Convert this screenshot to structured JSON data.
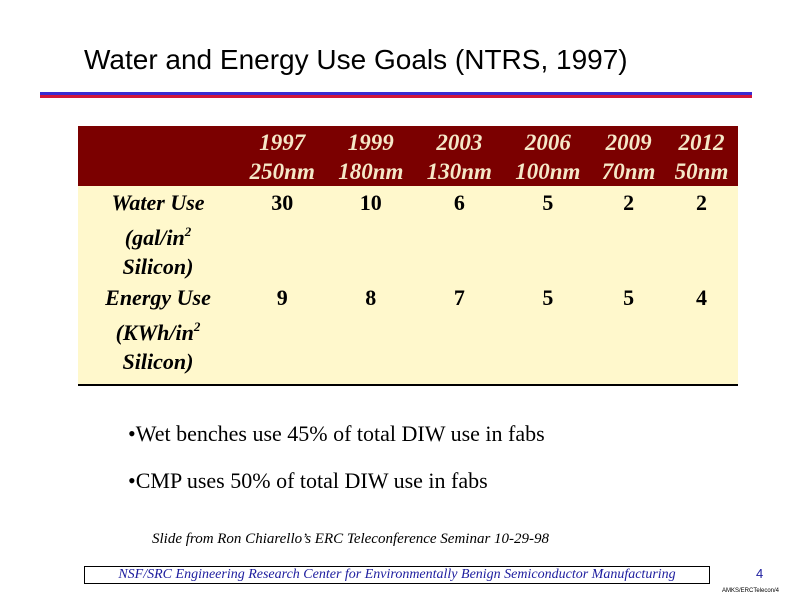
{
  "slide": {
    "title": "Water and Energy Use Goals (NTRS, 1997)",
    "table": {
      "columns": [
        {
          "year": "1997",
          "node": "250nm"
        },
        {
          "year": "1999",
          "node": "180nm"
        },
        {
          "year": "2003",
          "node": "130nm"
        },
        {
          "year": "2006",
          "node": "100nm"
        },
        {
          "year": "2009",
          "node": "70nm"
        },
        {
          "year": "2012",
          "node": "50nm"
        }
      ],
      "rows": [
        {
          "label_main": "Water Use",
          "label_unit_pre": "(gal/in",
          "label_unit_exp": "2",
          "label_tail": "Silicon)",
          "values": [
            "30",
            "10",
            "6",
            "5",
            "2",
            "2"
          ]
        },
        {
          "label_main": "Energy Use",
          "label_unit_pre": "(KWh/in",
          "label_unit_exp": "2",
          "label_tail": "Silicon)",
          "values": [
            "9",
            "8",
            "7",
            "5",
            "5",
            "4"
          ]
        }
      ]
    },
    "bullets": [
      "•Wet benches use 45% of total DIW use in fabs",
      "•CMP uses 50% of total DIW use in fabs"
    ],
    "credit": "Slide from Ron Chiarello’s ERC Teleconference Seminar 10-29-98",
    "footer": "NSF/SRC Engineering Research Center for Environmentally Benign Semiconductor Manufacturing",
    "page_number": "4",
    "doc_code": "AMKS/ERCTelecon/4"
  },
  "colors": {
    "header_bg": "#7b0000",
    "header_text": "#f5e8c8",
    "body_bg": "#fff8cc",
    "rule_blue": "#3a2bd1",
    "rule_red": "#d1173a",
    "footer_text": "#1c1c9e"
  }
}
